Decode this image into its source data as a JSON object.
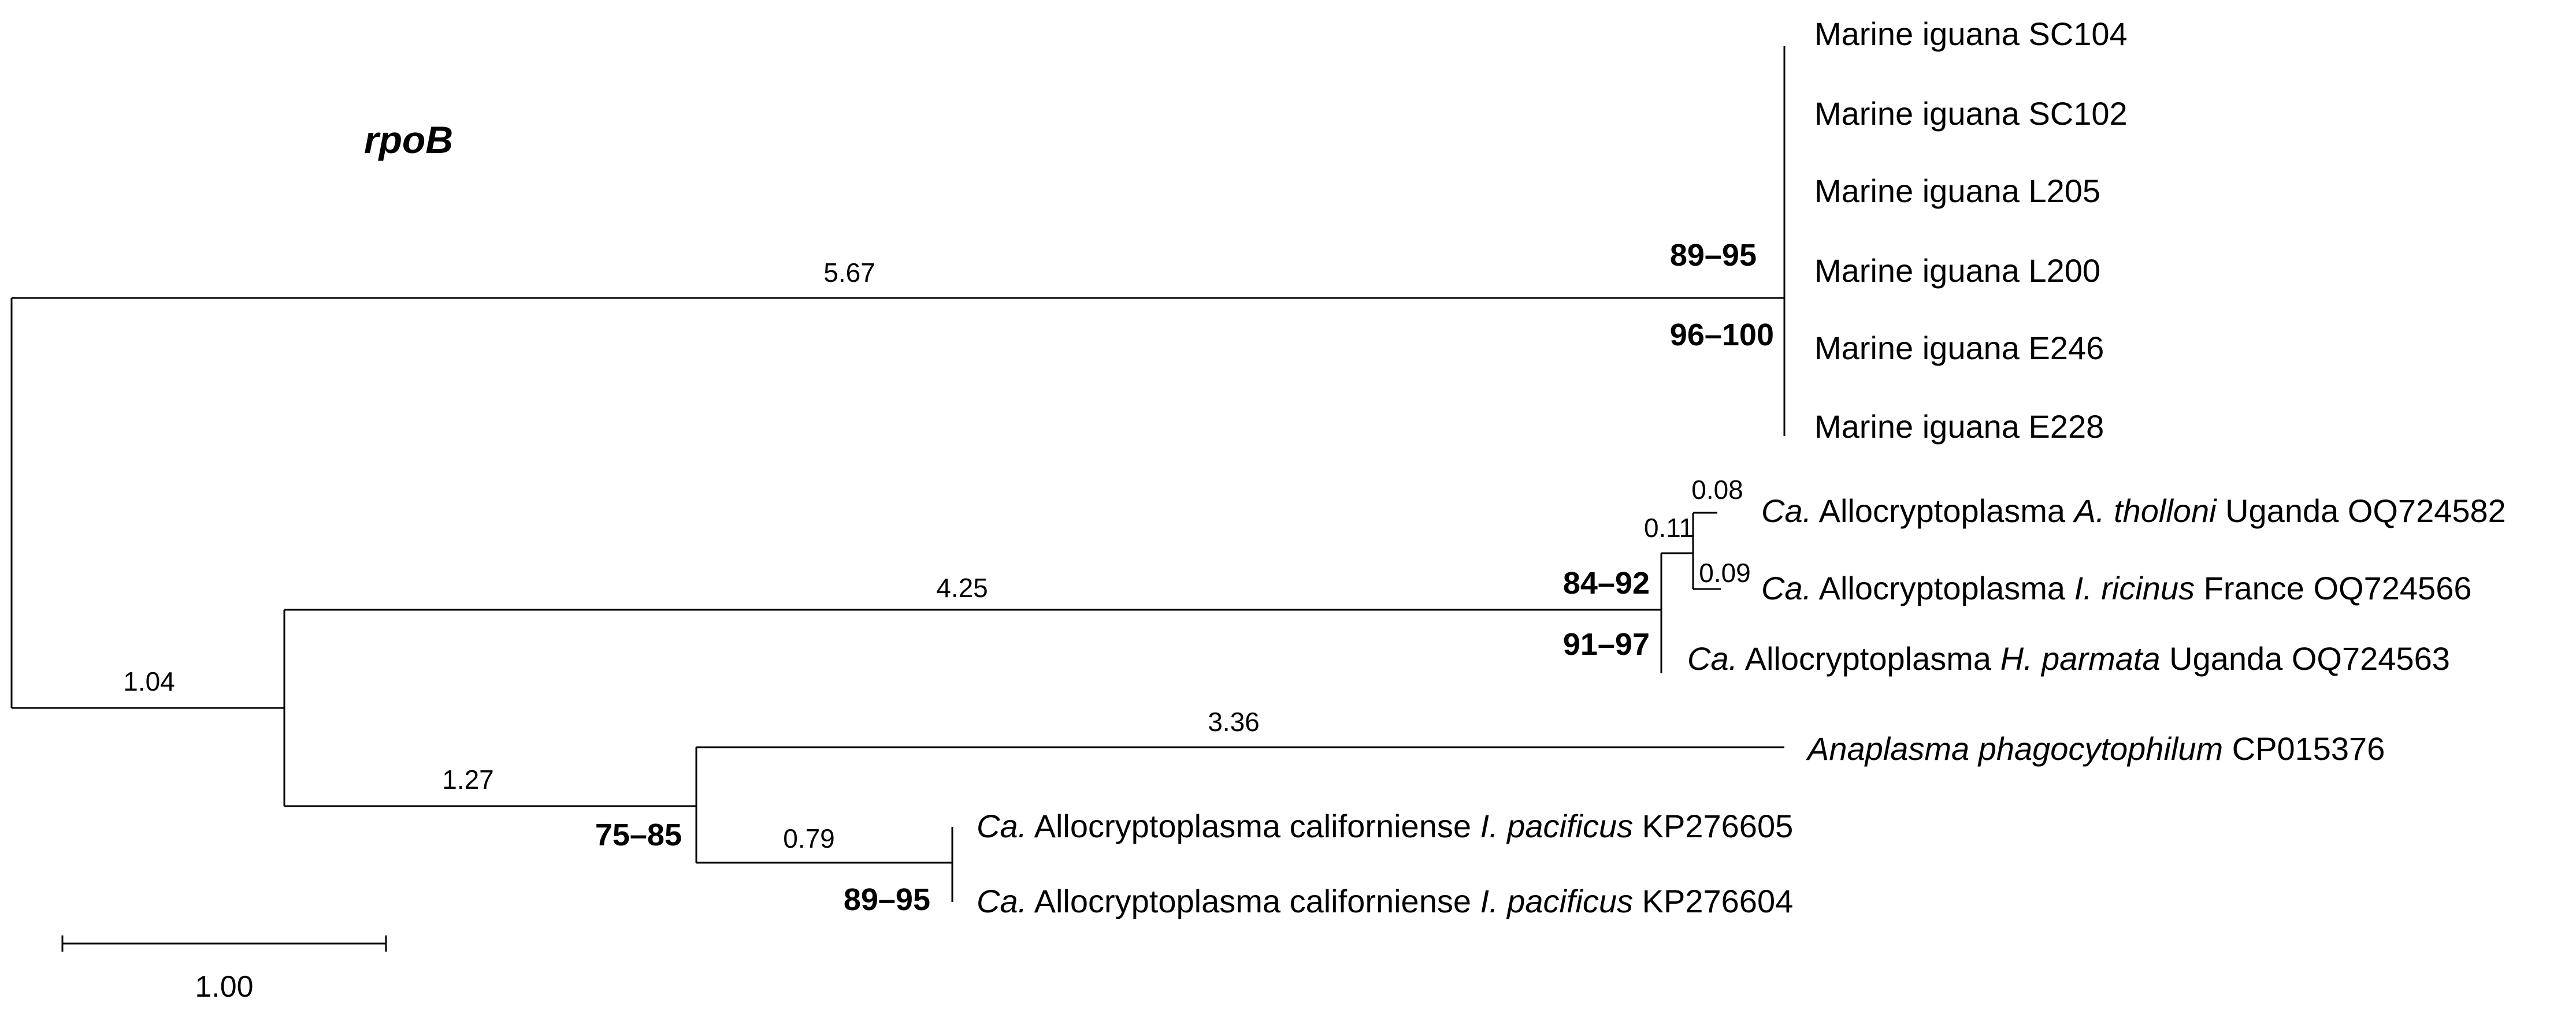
{
  "title": "rpoB",
  "scale_bar": {
    "label": "1.00"
  },
  "branch_lengths": {
    "iguana_clade": "5.67",
    "ingroup": "1.04",
    "allocrypto_clade": "4.25",
    "tholloni_ricinus": "0.11",
    "tholloni": "0.08",
    "ricinus": "0.09",
    "anaplasma_clade": "1.27",
    "anaplasma": "3.36",
    "californiense": "0.79"
  },
  "supports": {
    "iguana_a": "89–95",
    "iguana_b": "96–100",
    "allocrypto_a": "84–92",
    "allocrypto_b": "91–97",
    "anaplasma_node": "75–85",
    "californiense_node": "89–95"
  },
  "leaves": {
    "sc104": "Marine iguana SC104",
    "sc102": "Marine iguana SC102",
    "l205": "Marine iguana L205",
    "l200": "Marine iguana L200",
    "e246": "Marine iguana E246",
    "e228": "Marine iguana E228",
    "tholloni": {
      "prefix": "Ca.",
      "genus": " Allocryptoplasma ",
      "host": "A. tholloni",
      "suffix": " Uganda OQ724582"
    },
    "ricinus": {
      "prefix": "Ca.",
      "genus": " Allocryptoplasma ",
      "host": "I. ricinus",
      "suffix": " France OQ724566"
    },
    "parmata": {
      "prefix": "Ca.",
      "genus": " Allocryptoplasma ",
      "host": "H. parmata",
      "suffix": " Uganda OQ724563"
    },
    "anaplasma": {
      "species": "Anaplasma phagocytophilum",
      "suffix": " CP015376"
    },
    "kp276605": {
      "prefix": "Ca.",
      "genus": " Allocryptoplasma californiense ",
      "host": "I. pacificus",
      "suffix": " KP276605"
    },
    "kp276604": {
      "prefix": "Ca.",
      "genus": " Allocryptoplasma californiense ",
      "host": "I. pacificus",
      "suffix": " KP276604"
    }
  }
}
